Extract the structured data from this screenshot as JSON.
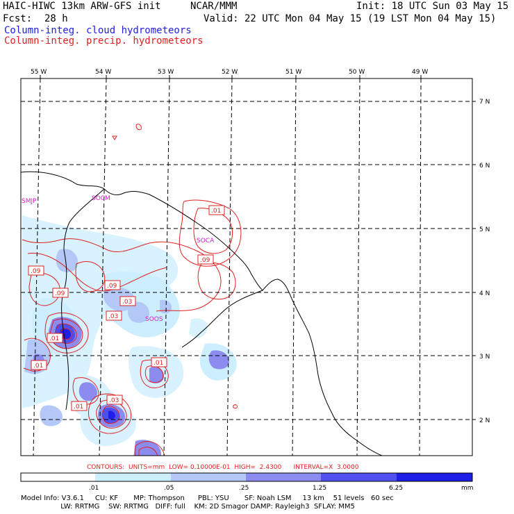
{
  "header": {
    "model": "HAIC-HIWC 13km ARW-GFS init",
    "center": "NCAR/MMM",
    "init": "Init: 18 UTC Sun 03 May 15",
    "fcst_label": "Fcst:",
    "fcst_value": "28 h",
    "valid": "Valid: 22 UTC Mon 04 May 15 (19 LST Mon 04 May 15)",
    "field_cloud": "Column-integ. cloud hydrometeors",
    "field_precip": "Column-integ. precip. hydrometeors"
  },
  "axes": {
    "lon_labels": [
      "55 W",
      "54 W",
      "53 W",
      "52 W",
      "51 W",
      "50 W",
      "49 W"
    ],
    "lat_labels": [
      "7 N",
      "6 N",
      "5 N",
      "4 N",
      "3 N",
      "2 N"
    ]
  },
  "stations": [
    "SMJP",
    "SOCM",
    "SOCA",
    "SOOS"
  ],
  "contour_labels": [
    ".01",
    ".09",
    ".09",
    ".09",
    ".09",
    ".03",
    ".03",
    ".01",
    ".01",
    ".01",
    ".03",
    ".01"
  ],
  "contour_info": "CONTOURS:  UNITS=mm  LOW= 0.10000E-01  HIGH=  2.4300      INTERVAL=X  3.0000",
  "colorbar": {
    "ticks": [
      ".01",
      ".05",
      ".25",
      "1.25",
      "6.25"
    ],
    "unit": "mm",
    "colors": [
      "#ffffff",
      "#cceeff",
      "#b4c8f8",
      "#8c8cf0",
      "#5050f0",
      "#1e1ee6"
    ]
  },
  "footer": {
    "line1": "Model Info: V3.6.1     CU: KF       MP: Thompson      PBL: YSU       SF: Noah LSM     13 km    51 levels   60 sec",
    "line2": "                  LW: RRTMG    SW: RRTMG   DIFF: full    KM: 2D Smagor DAMP: Rayleigh3  SFLAY: MM5"
  }
}
